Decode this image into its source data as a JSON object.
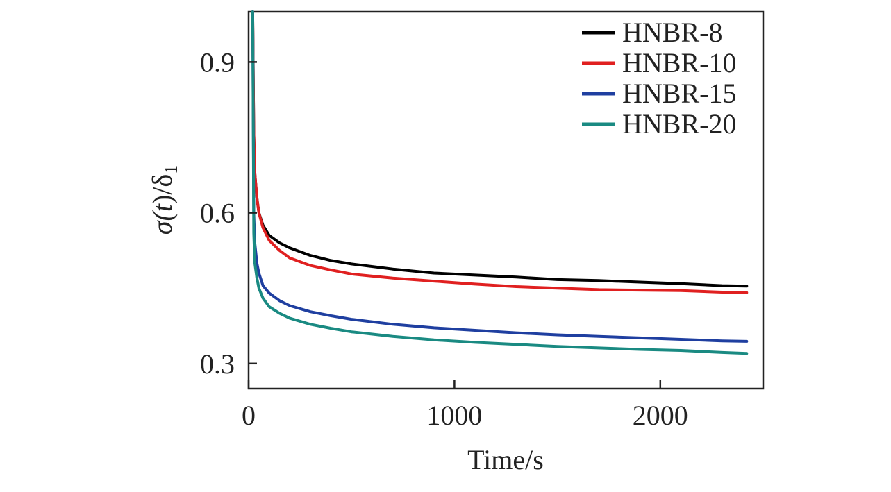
{
  "chart_data": {
    "type": "line",
    "xlabel": "Time/s",
    "ylabel": "σ(t)/δ1",
    "ylabel_parts": {
      "sigma": "σ(",
      "t": "t",
      "close": ")/δ",
      "sub": "1"
    },
    "xlim": [
      0,
      2500
    ],
    "ylim": [
      0.25,
      1.0
    ],
    "xticks": [
      0,
      1000,
      2000
    ],
    "xtick_labels": [
      "0",
      "1000",
      "2000"
    ],
    "yticks": [
      0.3,
      0.6,
      0.9
    ],
    "ytick_labels": [
      "0.3",
      "0.6",
      "0.9"
    ],
    "grid": false,
    "legend_position": "top-right",
    "series": [
      {
        "name": "HNBR-8",
        "color": "#000000",
        "x": [
          20,
          25,
          30,
          40,
          50,
          70,
          100,
          150,
          200,
          300,
          400,
          500,
          700,
          900,
          1100,
          1300,
          1500,
          1700,
          1900,
          2100,
          2300,
          2420
        ],
        "y": [
          1.0,
          0.76,
          0.68,
          0.63,
          0.6,
          0.575,
          0.555,
          0.54,
          0.53,
          0.515,
          0.505,
          0.498,
          0.488,
          0.48,
          0.476,
          0.472,
          0.467,
          0.465,
          0.462,
          0.459,
          0.455,
          0.454
        ]
      },
      {
        "name": "HNBR-10",
        "color": "#e02020",
        "x": [
          20,
          25,
          30,
          40,
          50,
          70,
          100,
          150,
          200,
          300,
          400,
          500,
          700,
          900,
          1100,
          1300,
          1500,
          1700,
          1900,
          2100,
          2300,
          2420
        ],
        "y": [
          1.0,
          0.76,
          0.68,
          0.63,
          0.6,
          0.57,
          0.545,
          0.525,
          0.51,
          0.495,
          0.486,
          0.478,
          0.47,
          0.464,
          0.458,
          0.453,
          0.45,
          0.447,
          0.446,
          0.445,
          0.442,
          0.441
        ]
      },
      {
        "name": "HNBR-15",
        "color": "#1f3fa0",
        "x": [
          20,
          25,
          30,
          40,
          50,
          70,
          100,
          150,
          200,
          300,
          400,
          500,
          700,
          900,
          1100,
          1300,
          1500,
          1700,
          1900,
          2100,
          2300,
          2420
        ],
        "y": [
          1.0,
          0.6,
          0.54,
          0.5,
          0.48,
          0.455,
          0.44,
          0.425,
          0.415,
          0.403,
          0.395,
          0.388,
          0.378,
          0.371,
          0.366,
          0.361,
          0.357,
          0.354,
          0.351,
          0.348,
          0.345,
          0.344
        ]
      },
      {
        "name": "HNBR-20",
        "color": "#1a8a82",
        "x": [
          20,
          25,
          30,
          40,
          50,
          70,
          100,
          150,
          200,
          300,
          400,
          500,
          700,
          900,
          1100,
          1300,
          1500,
          1700,
          1900,
          2100,
          2300,
          2420
        ],
        "y": [
          1.0,
          0.56,
          0.5,
          0.47,
          0.45,
          0.43,
          0.413,
          0.4,
          0.39,
          0.378,
          0.37,
          0.363,
          0.354,
          0.347,
          0.342,
          0.338,
          0.334,
          0.331,
          0.328,
          0.326,
          0.322,
          0.32
        ]
      }
    ]
  }
}
